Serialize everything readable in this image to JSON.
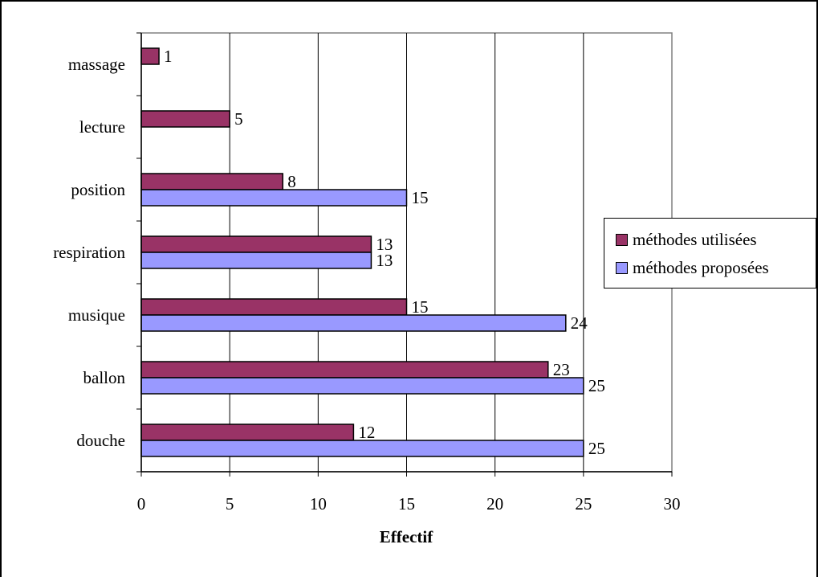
{
  "chart_data": {
    "type": "bar",
    "orientation": "horizontal",
    "categories": [
      "douche",
      "ballon",
      "musique",
      "respiration",
      "position",
      "lecture",
      "massage"
    ],
    "series": [
      {
        "name": "méthodes utilisées",
        "color": "#993366",
        "values": [
          12,
          23,
          15,
          13,
          8,
          5,
          1
        ]
      },
      {
        "name": "méthodes proposées",
        "color": "#9999ff",
        "values": [
          25,
          25,
          24,
          13,
          15,
          null,
          null
        ]
      }
    ],
    "xlabel": "Effectif",
    "ylabel": "",
    "xlim": [
      0,
      30
    ],
    "xticks": [
      0,
      5,
      10,
      15,
      20,
      25,
      30
    ],
    "grid": "vertical",
    "legend_position": "right",
    "data_labels": true,
    "plot_background": "#ffffff"
  },
  "legend": {
    "items": [
      {
        "label": "méthodes utilisées",
        "color": "#993366"
      },
      {
        "label": "méthodes proposées",
        "color": "#9999ff"
      }
    ]
  }
}
